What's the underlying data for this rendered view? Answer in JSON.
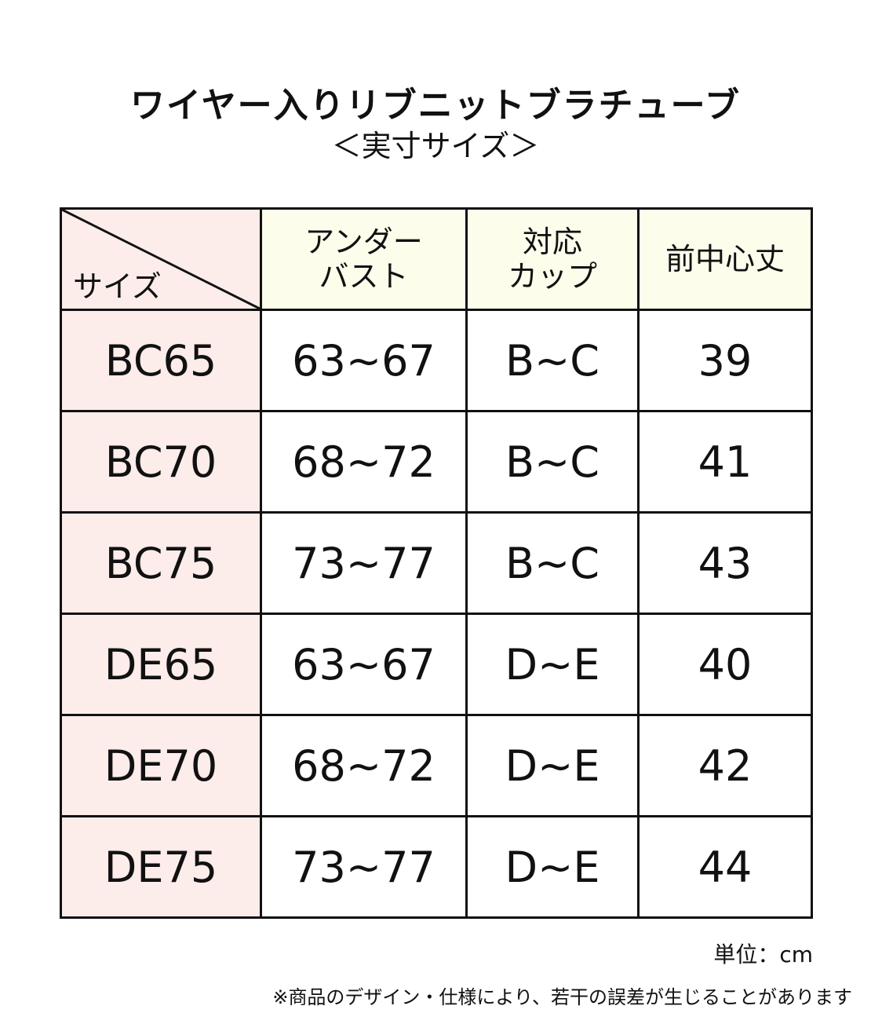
{
  "title": "ワイヤー入りリブニットブラチューブ",
  "subtitle": "＜実寸サイズ＞",
  "table": {
    "corner_label": "サイズ",
    "headers": [
      {
        "line1": "アンダー",
        "line2": "バスト"
      },
      {
        "line1": "対応",
        "line2": "カップ"
      },
      {
        "line1": "前中心丈",
        "line2": ""
      }
    ],
    "rows": [
      {
        "size": "BC65",
        "under_bust": "63~67",
        "cup": "B~C",
        "front_length": "39"
      },
      {
        "size": "BC70",
        "under_bust": "68~72",
        "cup": "B~C",
        "front_length": "41"
      },
      {
        "size": "BC75",
        "under_bust": "73~77",
        "cup": "B~C",
        "front_length": "43"
      },
      {
        "size": "DE65",
        "under_bust": "63~67",
        "cup": "D~E",
        "front_length": "40"
      },
      {
        "size": "DE70",
        "under_bust": "68~72",
        "cup": "D~E",
        "front_length": "42"
      },
      {
        "size": "DE75",
        "under_bust": "73~77",
        "cup": "D~E",
        "front_length": "44"
      }
    ]
  },
  "unit": "単位：cm",
  "note": "※商品のデザイン・仕様により、若干の誤差が生じることがあります",
  "colors": {
    "size_column_bg": "#fcecea",
    "header_bg": "#fdfdec",
    "border": "#111111"
  }
}
